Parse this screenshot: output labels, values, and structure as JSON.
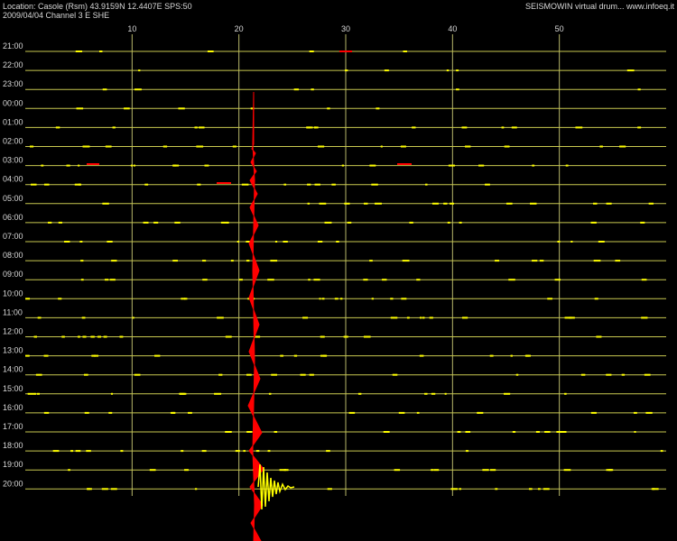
{
  "header": {
    "location": "Location: Casole (Rsm) 43.9159N 12.4407E SPS:50",
    "date_channel": "2009/04/04  Channel 3 E SHE",
    "credit": "SEISMOWIN virtual drum... www.infoeq.it"
  },
  "minute_ticks": [
    10,
    20,
    30,
    40,
    50
  ],
  "hour_labels": [
    "21:00",
    "22:00",
    "23:00",
    "00:00",
    "01:00",
    "02:00",
    "03:00",
    "04:00",
    "05:00",
    "06:00",
    "07:00",
    "08:00",
    "09:00",
    "10:00",
    "11:00",
    "12:00",
    "13:00",
    "14:00",
    "15:00",
    "16:00",
    "17:00",
    "18:00",
    "19:00",
    "20:00"
  ]
}
